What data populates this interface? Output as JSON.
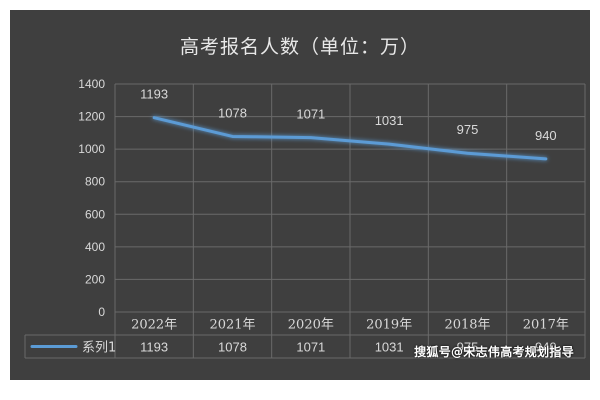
{
  "chart_data": {
    "type": "line",
    "title": "高考报名人数（单位：万）",
    "categories": [
      "2022年",
      "2021年",
      "2020年",
      "2019年",
      "2018年",
      "2017年"
    ],
    "series": [
      {
        "name": "系列1",
        "values": [
          1193,
          1078,
          1071,
          1031,
          975,
          940
        ]
      }
    ],
    "ylim": [
      0,
      1400
    ],
    "yticks": [
      0,
      200,
      400,
      600,
      800,
      1000,
      1200,
      1400
    ],
    "grid": true,
    "legend": "data-table-bottom",
    "data_table": true,
    "colors": {
      "background": "#3f3f3f",
      "line": "#5b9bd5",
      "grid": "#6a6a6a",
      "text": "#d9d9d9"
    }
  },
  "watermark": "搜狐号@宋志伟高考规划指导"
}
